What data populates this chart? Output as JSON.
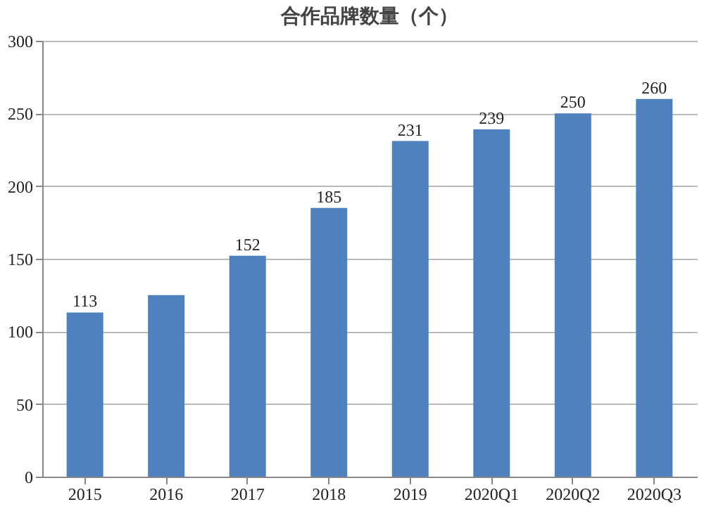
{
  "chart_data": {
    "type": "bar",
    "title": "合作品牌数量（个）",
    "categories": [
      "2015",
      "2016",
      "2017",
      "2018",
      "2019",
      "2020Q1",
      "2020Q2",
      "2020Q3"
    ],
    "values": [
      113,
      125,
      152,
      185,
      231,
      239,
      250,
      260
    ],
    "value_labels": [
      "113",
      null,
      "152",
      "185",
      "231",
      "239",
      "250",
      "260"
    ],
    "color": "#4f81bd",
    "ylim": [
      0,
      300
    ],
    "yticks": [
      0,
      50,
      100,
      150,
      200,
      250,
      300
    ],
    "grid": "y"
  }
}
